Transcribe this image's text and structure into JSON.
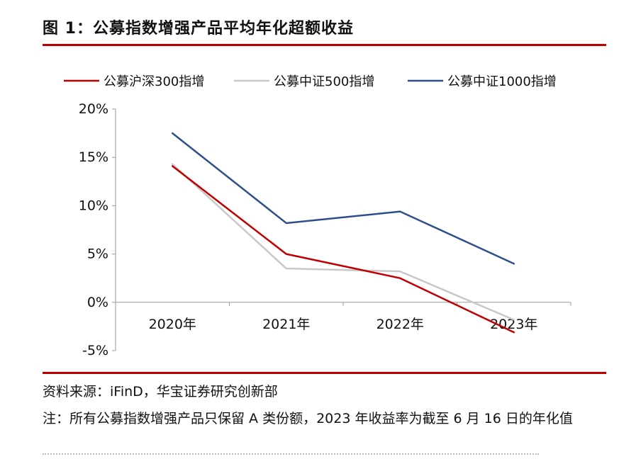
{
  "header": {
    "title": "图 1：公募指数增强产品平均年化超额收益"
  },
  "footer": {
    "source": "资料来源：iFinD，华宝证券研究创新部",
    "note": "注：所有公募指数增强产品只保留 A 类份额，2023 年收益率为截至 6 月 16 日的年化值"
  },
  "chart_data": {
    "type": "line",
    "categories": [
      "2020年",
      "2021年",
      "2022年",
      "2023年"
    ],
    "series": [
      {
        "name": "公募沪深300指增",
        "color": "#c00000",
        "values": [
          14.1,
          5.0,
          2.5,
          -3.1
        ]
      },
      {
        "name": "公募中证500指增",
        "color": "#c8c8c8",
        "values": [
          14.3,
          3.5,
          3.2,
          -1.8
        ]
      },
      {
        "name": "公募中证1000指增",
        "color": "#2f4f8a",
        "values": [
          17.5,
          8.2,
          9.4,
          4.0
        ]
      }
    ],
    "ylim": [
      -5,
      20
    ],
    "yticks": [
      -5,
      0,
      5,
      10,
      15,
      20
    ],
    "ytick_labels": [
      "-5%",
      "0%",
      "5%",
      "10%",
      "15%",
      "20%"
    ],
    "legend": "top",
    "grid": false
  }
}
